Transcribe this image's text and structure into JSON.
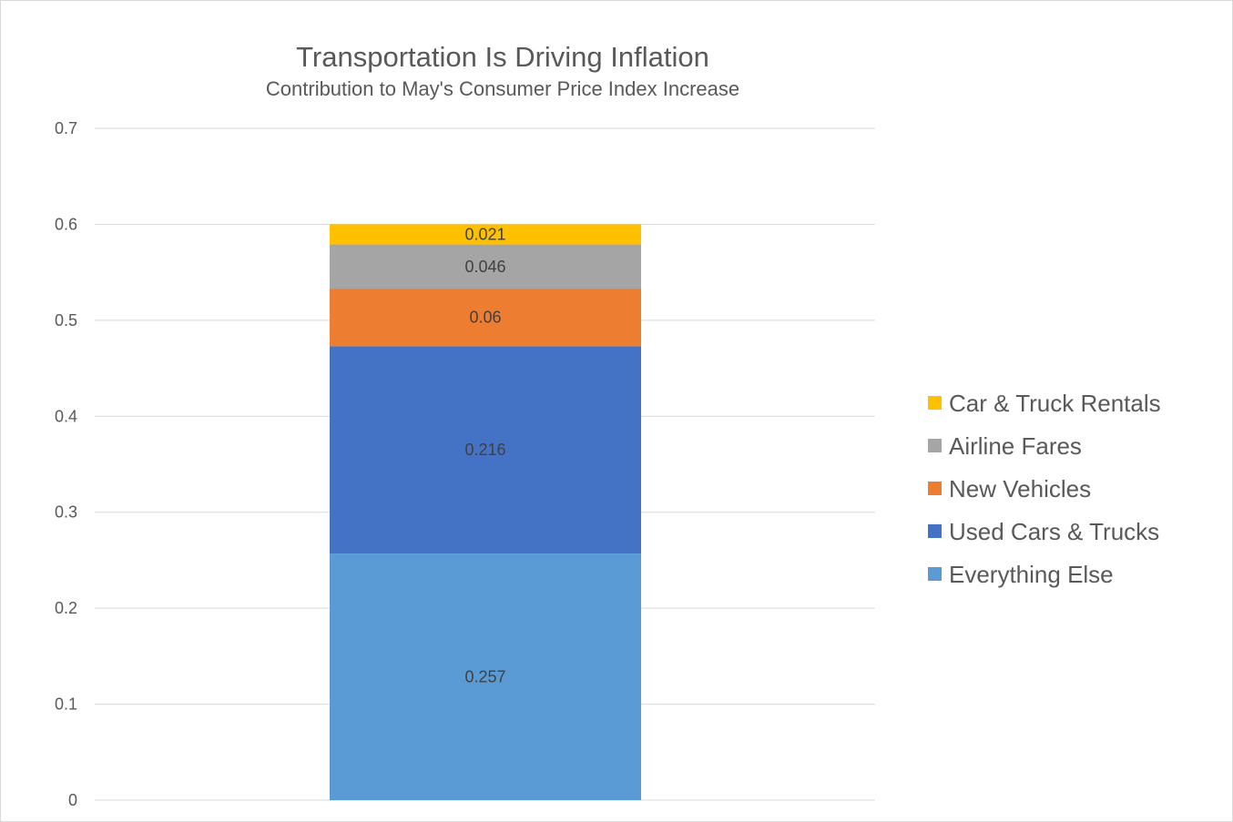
{
  "chart_data": {
    "type": "bar",
    "stacked": true,
    "title": "Transportation Is Driving Inflation",
    "subtitle": "Contribution to May's Consumer Price Index Increase",
    "xlabel": "",
    "ylabel": "",
    "categories": [
      ""
    ],
    "ylim": [
      0,
      0.7
    ],
    "yticks": [
      "0",
      "0.1",
      "0.2",
      "0.3",
      "0.4",
      "0.5",
      "0.6",
      "0.7"
    ],
    "grid": true,
    "legend_position": "right",
    "series": [
      {
        "name": "Everything Else",
        "values": [
          0.257
        ],
        "label": "0.257",
        "color": "#5b9bd5"
      },
      {
        "name": "Used Cars & Trucks",
        "values": [
          0.216
        ],
        "label": "0.216",
        "color": "#4472c4"
      },
      {
        "name": "New Vehicles",
        "values": [
          0.06
        ],
        "label": "0.06",
        "color": "#ed7d31"
      },
      {
        "name": "Airline Fares",
        "values": [
          0.046
        ],
        "label": "0.046",
        "color": "#a5a5a5"
      },
      {
        "name": "Car & Truck Rentals",
        "values": [
          0.021
        ],
        "label": "0.021",
        "color": "#ffc000"
      }
    ]
  }
}
